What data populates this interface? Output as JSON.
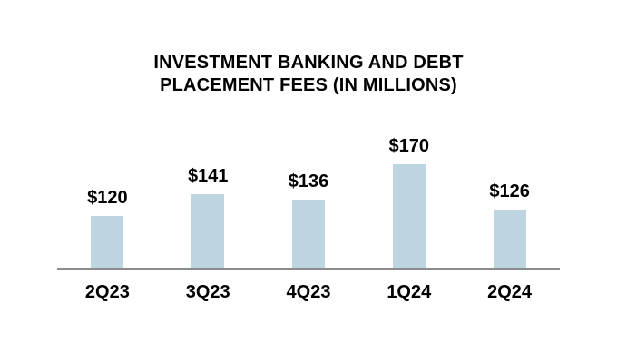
{
  "title_lines": [
    "INVESTMENT BANKING AND DEBT",
    "PLACEMENT FEES (IN MILLIONS)"
  ],
  "chart_data": {
    "type": "bar",
    "title": "INVESTMENT BANKING AND DEBT PLACEMENT FEES (IN MILLIONS)",
    "categories": [
      "2Q23",
      "3Q23",
      "4Q23",
      "1Q24",
      "2Q24"
    ],
    "values": [
      120,
      141,
      136,
      170,
      126
    ],
    "labels": [
      "$120",
      "$141",
      "$136",
      "$170",
      "$126"
    ],
    "xlabel": "",
    "ylabel": "",
    "ylim": [
      70,
      170
    ],
    "grid": false,
    "legend": false,
    "bar_color": "#BCD5E1",
    "axis_line_color": "#8C8C8C",
    "text_color": "#000000"
  }
}
